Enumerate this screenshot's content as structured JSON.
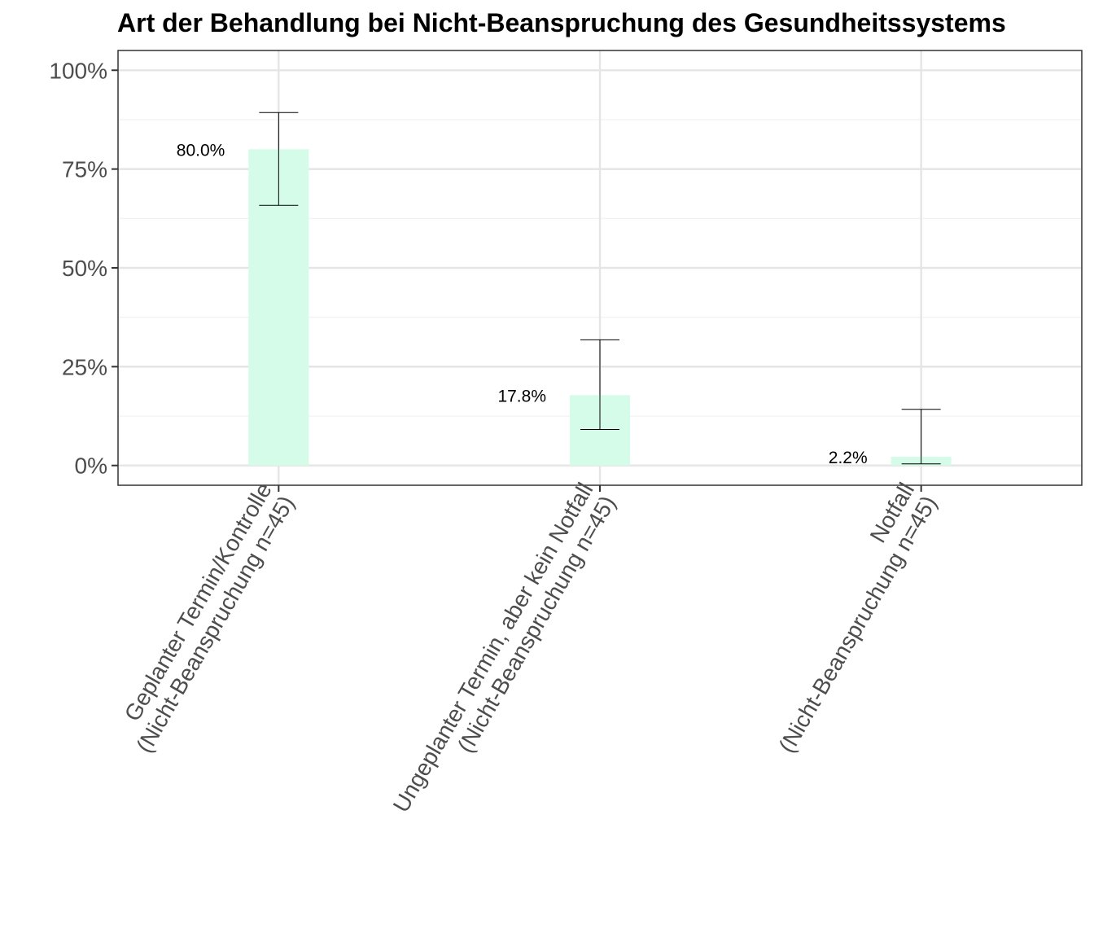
{
  "chart_data": {
    "type": "bar",
    "title": "Art der Behandlung bei Nicht-Beanspruchung des Gesundheitssystems",
    "xlabel": "",
    "ylabel": "",
    "categories": [
      [
        "Geplanter Termin/Kontrolle",
        "(Nicht-Beanspruchung n=45)"
      ],
      [
        "Ungeplanter Termin, aber kein Notfall",
        "(Nicht-Beanspruchung n=45)"
      ],
      [
        "Notfall",
        "(Nicht-Beanspruchung n=45)"
      ]
    ],
    "values": [
      80.0,
      17.8,
      2.2
    ],
    "value_labels": [
      "80.0%",
      "17.8%",
      "2.2%"
    ],
    "error_low": [
      65.8,
      9.1,
      0.4
    ],
    "error_high": [
      89.3,
      31.8,
      14.2
    ],
    "ylim": [
      -5,
      105
    ],
    "yticks": [
      0,
      25,
      50,
      75,
      100
    ],
    "ytick_labels": [
      "0%",
      "25%",
      "50%",
      "75%",
      "100%"
    ],
    "grid": true,
    "colors": {
      "bar": "#d4fce8",
      "panel_border": "#333333",
      "grid_major": "#e5e5e5",
      "grid_minor": "#f0f0f0",
      "errorbar": "#000000"
    }
  }
}
